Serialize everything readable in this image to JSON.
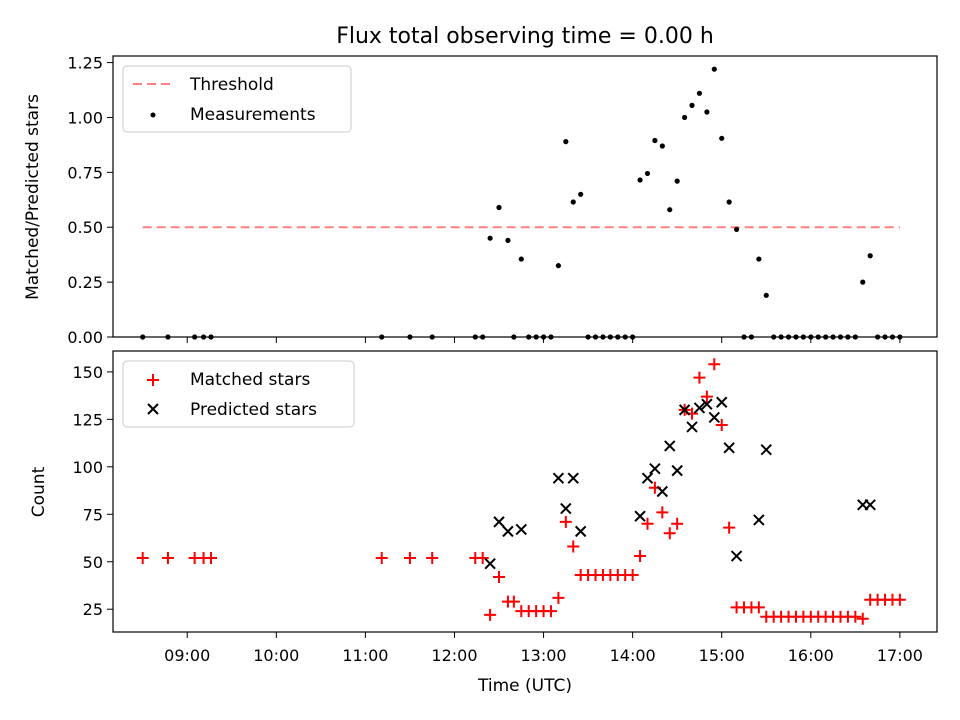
{
  "chart_data": [
    {
      "type": "scatter",
      "title": "Flux total observing time = 0.00 h",
      "xlabel": "",
      "ylabel": "Matched/Predicted stars",
      "ylim": [
        0,
        1.28
      ],
      "xlim": [
        "08:10",
        "17:25"
      ],
      "yticks": [
        "0.00",
        "0.25",
        "0.50",
        "0.75",
        "1.00",
        "1.25"
      ],
      "legend": {
        "placement": "top-left",
        "entries": [
          "Threshold",
          "Measurements"
        ]
      },
      "threshold": {
        "name": "Threshold",
        "value": 0.5,
        "x": [
          "08:30",
          "17:00"
        ],
        "color": "#ff8080",
        "style": "dashed"
      },
      "series": [
        {
          "name": "Measurements",
          "marker": "dot",
          "color": "#000000",
          "x": [
            "08:30",
            "08:47",
            "09:05",
            "09:11",
            "09:16",
            "11:11",
            "11:30",
            "11:45",
            "12:14",
            "12:19",
            "12:24",
            "12:30",
            "12:36",
            "12:40",
            "12:45",
            "12:50",
            "12:55",
            "13:00",
            "13:05",
            "13:10",
            "13:15",
            "13:20",
            "13:25",
            "13:30",
            "13:35",
            "13:40",
            "13:45",
            "13:50",
            "13:55",
            "14:00",
            "14:05",
            "14:10",
            "14:15",
            "14:20",
            "14:25",
            "14:30",
            "14:35",
            "14:40",
            "14:45",
            "14:50",
            "14:55",
            "15:00",
            "15:05",
            "15:10",
            "15:15",
            "15:20",
            "15:25",
            "15:30",
            "15:35",
            "15:40",
            "15:45",
            "15:50",
            "15:55",
            "16:00",
            "16:05",
            "16:10",
            "16:15",
            "16:20",
            "16:25",
            "16:30",
            "16:35",
            "16:40",
            "16:45",
            "16:50",
            "16:55",
            "17:00"
          ],
          "y": [
            0,
            0,
            0,
            0,
            0,
            0,
            0,
            0,
            0,
            0,
            0.45,
            0.59,
            0.44,
            0,
            0.355,
            0,
            0,
            0,
            0,
            0.325,
            0.89,
            0.615,
            0.65,
            0,
            0,
            0,
            0,
            0,
            0,
            0,
            0.715,
            0.745,
            0.895,
            0.87,
            0.58,
            0.71,
            1.0,
            1.055,
            1.11,
            1.025,
            1.22,
            0.905,
            0.615,
            0.49,
            0,
            0,
            0.355,
            0.19,
            0,
            0,
            0,
            0,
            0,
            0,
            0,
            0,
            0,
            0,
            0,
            0,
            0.25,
            0.37,
            0,
            0,
            0,
            0
          ]
        }
      ]
    },
    {
      "type": "scatter",
      "title": "",
      "xlabel": "Time (UTC)",
      "ylabel": "Count",
      "ylim": [
        13,
        161
      ],
      "xlim": [
        "08:10",
        "17:25"
      ],
      "yticks": [
        "25",
        "50",
        "75",
        "100",
        "125",
        "150"
      ],
      "xticks": [
        "09:00",
        "10:00",
        "11:00",
        "12:00",
        "13:00",
        "14:00",
        "15:00",
        "16:00",
        "17:00"
      ],
      "legend": {
        "placement": "top-left",
        "entries": [
          "Matched stars",
          "Predicted stars"
        ]
      },
      "series": [
        {
          "name": "Matched stars",
          "marker": "plus",
          "color": "#ff0000",
          "x": [
            "08:30",
            "08:47",
            "09:05",
            "09:11",
            "09:16",
            "11:11",
            "11:30",
            "11:45",
            "12:14",
            "12:19",
            "12:24",
            "12:30",
            "12:36",
            "12:40",
            "12:45",
            "12:50",
            "12:55",
            "13:00",
            "13:05",
            "13:10",
            "13:15",
            "13:20",
            "13:25",
            "13:30",
            "13:35",
            "13:40",
            "13:45",
            "13:50",
            "13:55",
            "14:00",
            "14:05",
            "14:10",
            "14:15",
            "14:20",
            "14:25",
            "14:30",
            "14:35",
            "14:40",
            "14:45",
            "14:50",
            "14:55",
            "15:00",
            "15:05",
            "15:10",
            "15:15",
            "15:20",
            "15:25",
            "15:30",
            "15:35",
            "15:40",
            "15:45",
            "15:50",
            "15:55",
            "16:00",
            "16:05",
            "16:10",
            "16:15",
            "16:20",
            "16:25",
            "16:30",
            "16:35",
            "16:40",
            "16:45",
            "16:50",
            "16:55",
            "17:00"
          ],
          "y": [
            52,
            52,
            52,
            52,
            52,
            52,
            52,
            52,
            52,
            52,
            22,
            42,
            29,
            29,
            24,
            24,
            24,
            24,
            24,
            31,
            71,
            58,
            43,
            43,
            43,
            43,
            43,
            43,
            43,
            43,
            53,
            70,
            89,
            76,
            65,
            70,
            130,
            128,
            147,
            137,
            154,
            122,
            68,
            26,
            26,
            26,
            26,
            21,
            21,
            21,
            21,
            21,
            21,
            21,
            21,
            21,
            21,
            21,
            21,
            21,
            20,
            30,
            30,
            30,
            30,
            30
          ]
        },
        {
          "name": "Predicted stars",
          "marker": "x",
          "color": "#000000",
          "x": [
            "12:24",
            "12:30",
            "12:36",
            "12:45",
            "13:10",
            "13:15",
            "13:20",
            "13:25",
            "14:05",
            "14:10",
            "14:15",
            "14:20",
            "14:25",
            "14:30",
            "14:35",
            "14:40",
            "14:45",
            "14:50",
            "14:55",
            "15:00",
            "15:05",
            "15:10",
            "15:25",
            "15:30",
            "16:35",
            "16:40"
          ],
          "y": [
            49,
            71,
            66,
            67,
            94,
            78,
            94,
            66,
            74,
            94,
            99,
            87,
            111,
            98,
            130,
            121,
            131,
            133,
            126,
            134,
            110,
            53,
            72,
            109,
            80,
            80
          ]
        }
      ]
    }
  ]
}
